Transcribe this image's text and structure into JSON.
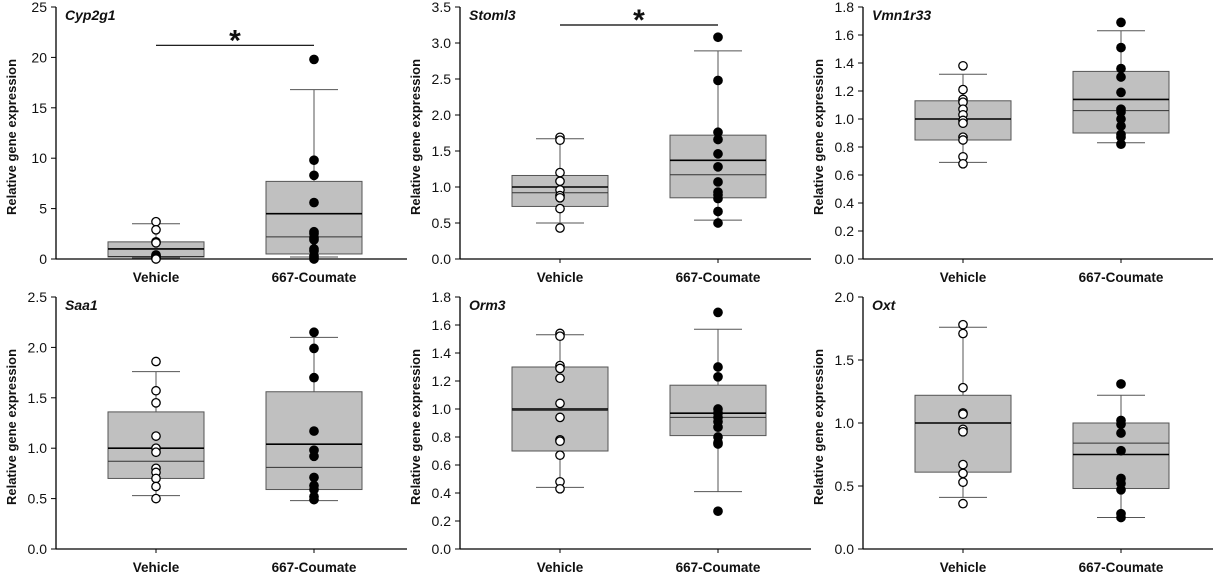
{
  "figure": {
    "ylabel": "Relative gene expression",
    "categories": [
      "Vehicle",
      "667-Coumate"
    ],
    "colors": {
      "box_fill": "#c0c0c0",
      "box_stroke": "#555555",
      "whisker": "#555555",
      "mean_line": "#000000",
      "median_line": "#333333",
      "vehicle_marker_fill": "#ffffff",
      "coumate_marker_fill": "#000000",
      "axis": "#000000"
    }
  },
  "chart_data": [
    {
      "type": "box",
      "title": "Cyp2g1",
      "xlabel": "",
      "ylabel": "Relative gene expression",
      "categories": [
        "Vehicle",
        "667-Coumate"
      ],
      "ylim": [
        0,
        25
      ],
      "yticks": [
        0,
        5,
        10,
        15,
        20,
        25
      ],
      "ytick_labels": [
        "0",
        "5",
        "10",
        "15",
        "20",
        "25"
      ],
      "significance": {
        "between": [
          "Vehicle",
          "667-Coumate"
        ],
        "label": "*",
        "y": 21.2
      },
      "series": [
        {
          "name": "Vehicle",
          "marker": "open-circle",
          "q1": 0.2,
          "q3": 1.7,
          "median": 0.25,
          "mean": 1.0,
          "whisker_low": 0.1,
          "whisker_high": 3.5,
          "points": [
            3.7,
            2.9,
            1.7,
            1.6,
            0.4,
            0.3,
            0.2,
            0.1,
            0.1,
            0.05,
            0.0
          ]
        },
        {
          "name": "667-Coumate",
          "marker": "filled-circle",
          "q1": 0.5,
          "q3": 7.7,
          "median": 2.2,
          "mean": 4.5,
          "whisker_low": 0.2,
          "whisker_high": 16.8,
          "points": [
            19.8,
            9.8,
            8.3,
            5.6,
            2.7,
            2.5,
            2.1,
            1.9,
            1.0,
            0.8,
            0.3,
            0.1,
            0.0
          ]
        }
      ]
    },
    {
      "type": "box",
      "title": "Stoml3",
      "xlabel": "",
      "ylabel": "Relative gene expression",
      "categories": [
        "Vehicle",
        "667-Coumate"
      ],
      "ylim": [
        0,
        3.5
      ],
      "yticks": [
        0,
        0.5,
        1.0,
        1.5,
        2.0,
        2.5,
        3.0,
        3.5
      ],
      "ytick_labels": [
        "0.0",
        "0.5",
        "1.0",
        "1.5",
        "2.0",
        "2.5",
        "3.0",
        "3.5"
      ],
      "significance": {
        "between": [
          "Vehicle",
          "667-Coumate"
        ],
        "label": "*",
        "y": 3.25
      },
      "series": [
        {
          "name": "Vehicle",
          "marker": "open-circle",
          "q1": 0.73,
          "q3": 1.16,
          "median": 0.92,
          "mean": 1.0,
          "whisker_low": 0.5,
          "whisker_high": 1.67,
          "points": [
            1.69,
            1.65,
            1.2,
            1.08,
            0.96,
            0.88,
            0.85,
            0.7,
            0.43
          ]
        },
        {
          "name": "667-Coumate",
          "marker": "filled-circle",
          "q1": 0.85,
          "q3": 1.72,
          "median": 1.17,
          "mean": 1.37,
          "whisker_low": 0.54,
          "whisker_high": 2.89,
          "points": [
            3.08,
            2.48,
            1.76,
            1.66,
            1.46,
            1.28,
            1.07,
            0.93,
            0.89,
            0.84,
            0.66,
            0.5
          ]
        }
      ]
    },
    {
      "type": "box",
      "title": "Vmn1r33",
      "xlabel": "",
      "ylabel": "Relative gene expression",
      "categories": [
        "Vehicle",
        "667-Coumate"
      ],
      "ylim": [
        0,
        1.8
      ],
      "yticks": [
        0,
        0.2,
        0.4,
        0.6,
        0.8,
        1.0,
        1.2,
        1.4,
        1.6,
        1.8
      ],
      "ytick_labels": [
        "0.0",
        "0.2",
        "0.4",
        "0.6",
        "0.8",
        "1.0",
        "1.2",
        "1.4",
        "1.6",
        "1.8"
      ],
      "significance": null,
      "series": [
        {
          "name": "Vehicle",
          "marker": "open-circle",
          "q1": 0.85,
          "q3": 1.13,
          "median": 1.0,
          "mean": 1.0,
          "whisker_low": 0.69,
          "whisker_high": 1.32,
          "points": [
            1.38,
            1.21,
            1.14,
            1.12,
            1.07,
            1.03,
            0.99,
            0.97,
            0.87,
            0.85,
            0.73,
            0.68
          ]
        },
        {
          "name": "667-Coumate",
          "marker": "filled-circle",
          "q1": 0.9,
          "q3": 1.34,
          "median": 1.06,
          "mean": 1.14,
          "whisker_low": 0.83,
          "whisker_high": 1.63,
          "points": [
            1.69,
            1.51,
            1.36,
            1.3,
            1.19,
            1.07,
            1.05,
            1.0,
            0.95,
            0.89,
            0.87,
            0.82
          ]
        }
      ]
    },
    {
      "type": "box",
      "title": "Saa1",
      "xlabel": "",
      "ylabel": "Relative gene expression",
      "categories": [
        "Vehicle",
        "667-Coumate"
      ],
      "ylim": [
        0,
        2.5
      ],
      "yticks": [
        0,
        0.5,
        1.0,
        1.5,
        2.0,
        2.5
      ],
      "ytick_labels": [
        "0.0",
        "0.5",
        "1.0",
        "1.5",
        "2.0",
        "2.5"
      ],
      "significance": null,
      "series": [
        {
          "name": "Vehicle",
          "marker": "open-circle",
          "q1": 0.7,
          "q3": 1.36,
          "median": 0.87,
          "mean": 1.0,
          "whisker_low": 0.53,
          "whisker_high": 1.76,
          "points": [
            1.86,
            1.57,
            1.45,
            1.12,
            1.0,
            0.96,
            0.8,
            0.76,
            0.7,
            0.62,
            0.5
          ]
        },
        {
          "name": "667-Coumate",
          "marker": "filled-circle",
          "q1": 0.59,
          "q3": 1.56,
          "median": 0.81,
          "mean": 1.04,
          "whisker_low": 0.48,
          "whisker_high": 2.1,
          "points": [
            2.15,
            1.99,
            1.7,
            1.17,
            0.98,
            0.92,
            0.71,
            0.63,
            0.59,
            0.52,
            0.49
          ]
        }
      ]
    },
    {
      "type": "box",
      "title": "Orm3",
      "xlabel": "",
      "ylabel": "Relative gene expression",
      "categories": [
        "Vehicle",
        "667-Coumate"
      ],
      "ylim": [
        0,
        1.8
      ],
      "yticks": [
        0,
        0.2,
        0.4,
        0.6,
        0.8,
        1.0,
        1.2,
        1.4,
        1.6,
        1.8
      ],
      "ytick_labels": [
        "0.0",
        "0.2",
        "0.4",
        "0.6",
        "0.8",
        "1.0",
        "1.2",
        "1.4",
        "1.6",
        "1.8"
      ],
      "significance": null,
      "series": [
        {
          "name": "Vehicle",
          "marker": "open-circle",
          "q1": 0.7,
          "q3": 1.3,
          "median": 0.99,
          "mean": 1.0,
          "whisker_low": 0.44,
          "whisker_high": 1.53,
          "points": [
            1.54,
            1.52,
            1.31,
            1.29,
            1.22,
            1.04,
            0.94,
            0.78,
            0.77,
            0.67,
            0.48,
            0.43
          ]
        },
        {
          "name": "667-Coumate",
          "marker": "filled-circle",
          "q1": 0.81,
          "q3": 1.17,
          "median": 0.94,
          "mean": 0.97,
          "whisker_low": 0.41,
          "whisker_high": 1.57,
          "points": [
            1.69,
            1.3,
            1.23,
            1.0,
            0.97,
            0.94,
            0.91,
            0.87,
            0.8,
            0.76,
            0.75,
            0.27
          ]
        }
      ]
    },
    {
      "type": "box",
      "title": "Oxt",
      "xlabel": "",
      "ylabel": "Relative gene expression",
      "categories": [
        "Vehicle",
        "667-Coumate"
      ],
      "ylim": [
        0,
        2.0
      ],
      "yticks": [
        0,
        0.5,
        1.0,
        1.5,
        2.0
      ],
      "ytick_labels": [
        "0.0",
        "0.5",
        "1.0",
        "1.5",
        "2.0"
      ],
      "significance": null,
      "series": [
        {
          "name": "Vehicle",
          "marker": "open-circle",
          "q1": 0.61,
          "q3": 1.22,
          "median": 1.0,
          "mean": 1.0,
          "whisker_low": 0.41,
          "whisker_high": 1.76,
          "points": [
            1.78,
            1.71,
            1.28,
            1.08,
            1.07,
            0.95,
            0.93,
            0.67,
            0.6,
            0.53,
            0.36
          ]
        },
        {
          "name": "667-Coumate",
          "marker": "filled-circle",
          "q1": 0.48,
          "q3": 1.0,
          "median": 0.84,
          "mean": 0.75,
          "whisker_low": 0.25,
          "whisker_high": 1.22,
          "points": [
            1.31,
            1.02,
            0.99,
            0.92,
            0.78,
            0.56,
            0.52,
            0.47,
            0.28,
            0.25
          ]
        }
      ]
    }
  ]
}
